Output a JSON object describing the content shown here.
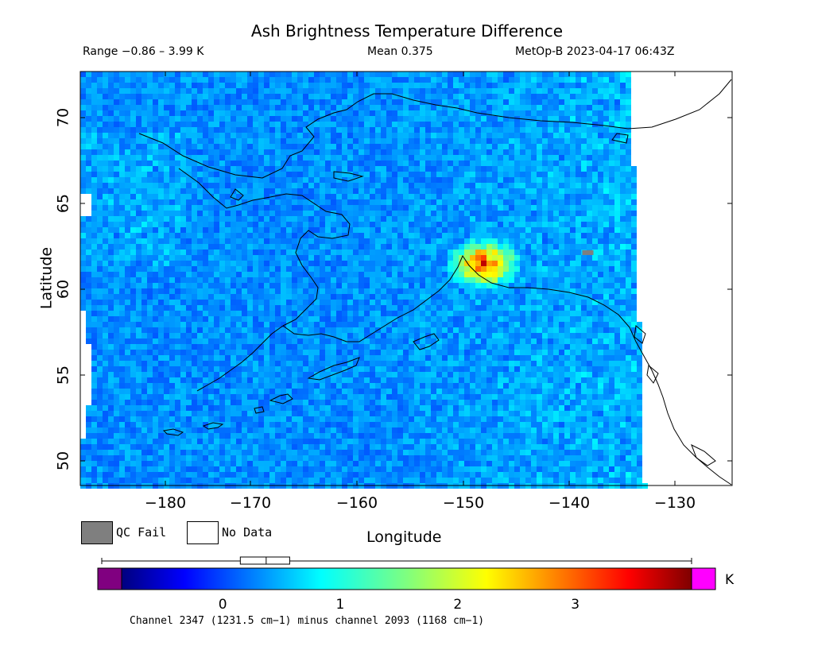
{
  "header": {
    "title": "Ash Brightness Temperature Difference",
    "range": "Range −0.86 – 3.99 K",
    "mean": "Mean 0.375",
    "satellite_time": "MetOp-B 2023-04-17 06:43Z"
  },
  "map": {
    "xlabel": "Longitude",
    "ylabel": "Latitude",
    "x_ticks": [
      "−180",
      "−170",
      "−160",
      "−150",
      "−140",
      "−130"
    ],
    "y_ticks": [
      "70",
      "65",
      "60",
      "55",
      "50"
    ],
    "lon_range": [
      -186,
      -125
    ],
    "lat_range": [
      48.8,
      72.8
    ],
    "ash_hotspot": {
      "lon": -148.5,
      "lat": 61.8,
      "peak_k": 3.99
    },
    "qc_fail_pixel": {
      "lon": -138.5,
      "lat": 62.3
    },
    "colors": {
      "qc_fail": "#7f7f7f",
      "no_data": "#ffffff",
      "coastline": "#000000"
    }
  },
  "legend": {
    "qc_fail_label": "QC Fail",
    "no_data_label": "No Data"
  },
  "colorbar": {
    "ticks": [
      "0",
      "1",
      "2",
      "3"
    ],
    "tick_values": [
      0,
      1,
      2,
      3
    ],
    "value_range": [
      -0.86,
      3.99
    ],
    "unit": "K",
    "underflow_color": "#800080",
    "overflow_color": "#ff00ff",
    "mean_box": {
      "q1": 0.15,
      "median": 0.37,
      "q3": 0.57
    },
    "channel_note": "Channel 2347 (1231.5 cm−1) minus channel 2093 (1168 cm−1)"
  }
}
